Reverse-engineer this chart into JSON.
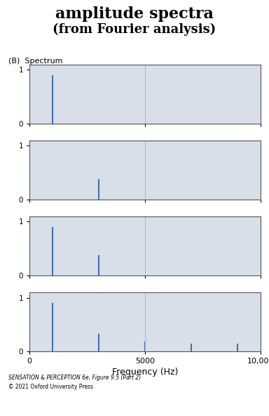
{
  "title_line1": "amplitude spectra",
  "title_line2": "(from Fourier analysis)",
  "panel_label": "(B)  Spectrum",
  "xlabel": "Frequency (Hz)",
  "bg_color": "#d8dfe8",
  "spike_color": "#4472a8",
  "xlim": [
    0,
    10000
  ],
  "xticks": [
    0,
    5000,
    10000
  ],
  "xticklabels": [
    "0",
    "5000",
    "10,000"
  ],
  "ylim": [
    0,
    1.1
  ],
  "yticks": [
    0,
    1
  ],
  "panels": [
    {
      "freqs": [
        1000
      ],
      "amps": [
        0.9
      ]
    },
    {
      "freqs": [
        3000
      ],
      "amps": [
        0.38
      ]
    },
    {
      "freqs": [
        1000,
        3000
      ],
      "amps": [
        0.9,
        0.38
      ]
    },
    {
      "freqs": [
        1000,
        3000,
        5000,
        7000,
        9000
      ],
      "amps": [
        0.9,
        0.33,
        0.18,
        0.15,
        0.15
      ]
    }
  ],
  "caption_line1": "SENSATION & PERCEPTION 6e, Figure 9.5 (Part 2)",
  "caption_line2": "© 2021 Oxford University Press",
  "fig_width": 3.84,
  "fig_height": 5.92
}
